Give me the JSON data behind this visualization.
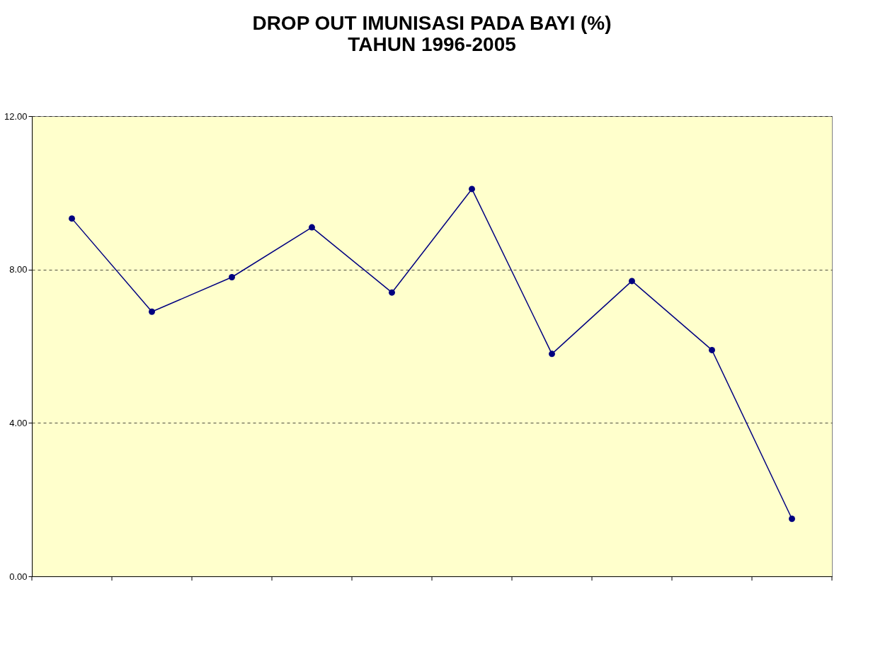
{
  "chart_data": {
    "type": "line",
    "title": [
      "DROP  OUT IMUNISASI PADA BAYI (%)",
      "TAHUN 1996-2005"
    ],
    "categories": [
      null,
      null,
      null,
      null,
      null,
      null,
      null,
      null,
      null,
      null
    ],
    "series": [
      {
        "color": "#000080",
        "values": [
          9.33,
          6.9,
          7.8,
          9.1,
          7.4,
          10.1,
          5.8,
          7.7,
          5.9,
          1.5
        ]
      }
    ],
    "ylim": [
      0,
      12
    ],
    "yticks": [
      {
        "value": 0,
        "label": "0.00"
      },
      {
        "value": 4,
        "label": "4.00"
      },
      {
        "value": 8,
        "label": "8.00"
      },
      {
        "value": 12,
        "label": "12.00"
      }
    ],
    "grid": "y",
    "marker": "circle",
    "line_style": "solid",
    "tick_labels": "y"
  }
}
